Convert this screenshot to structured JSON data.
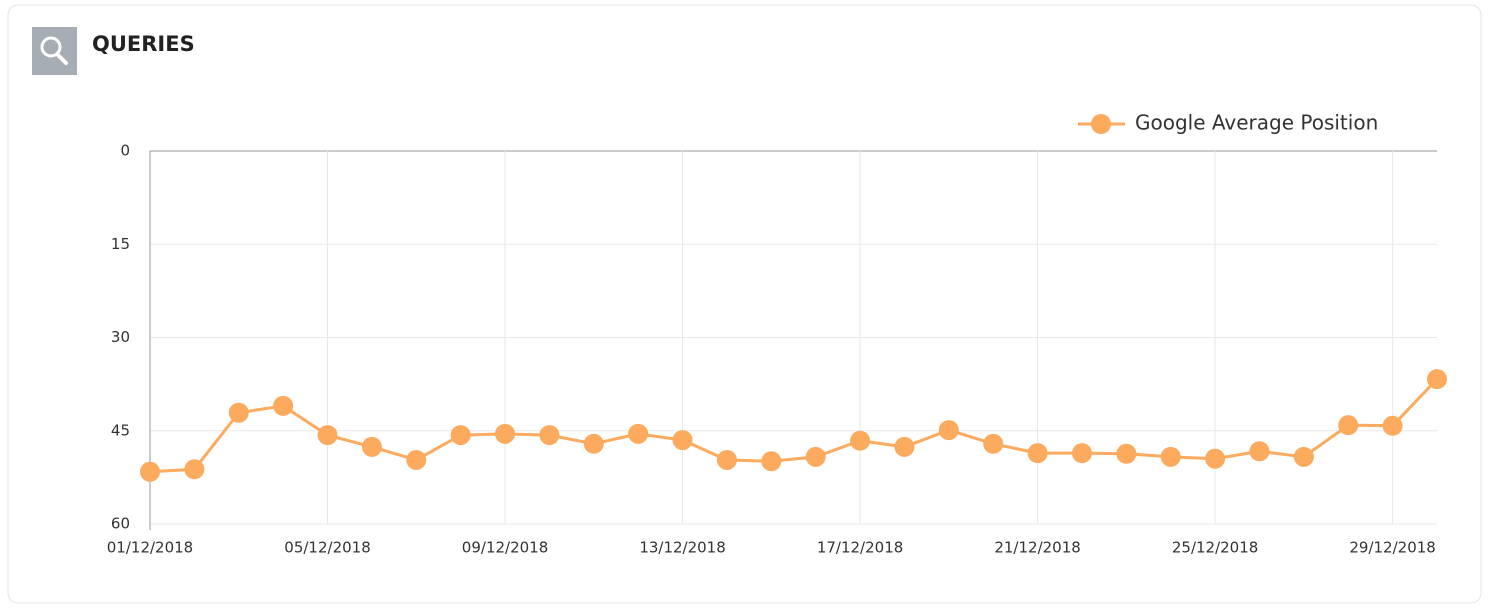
{
  "header": {
    "title": "QUERIES"
  },
  "chart_data": {
    "type": "line",
    "categories": [
      "01/12/2018",
      null,
      null,
      null,
      "05/12/2018",
      null,
      null,
      null,
      "09/12/2018",
      null,
      null,
      null,
      "13/12/2018",
      null,
      null,
      null,
      "17/12/2018",
      null,
      null,
      null,
      "21/12/2018",
      null,
      null,
      null,
      "25/12/2018",
      null,
      null,
      null,
      "29/12/2018",
      null
    ],
    "series": [
      {
        "name": "Google Average Position",
        "color": "#fcaa5d",
        "values": [
          51.6,
          51.2,
          42.1,
          41.0,
          45.7,
          47.6,
          49.7,
          45.7,
          45.5,
          45.7,
          47.1,
          45.5,
          46.5,
          49.7,
          49.9,
          49.2,
          46.6,
          47.6,
          44.9,
          47.1,
          48.6,
          48.6,
          48.7,
          49.2,
          49.5,
          48.3,
          49.2,
          44.1,
          44.2,
          36.7
        ]
      }
    ],
    "ylim": [
      0,
      60
    ],
    "yticks": [
      0,
      15,
      30,
      45,
      60
    ],
    "y_reversed": true,
    "grid": true,
    "legend": "top-right"
  }
}
